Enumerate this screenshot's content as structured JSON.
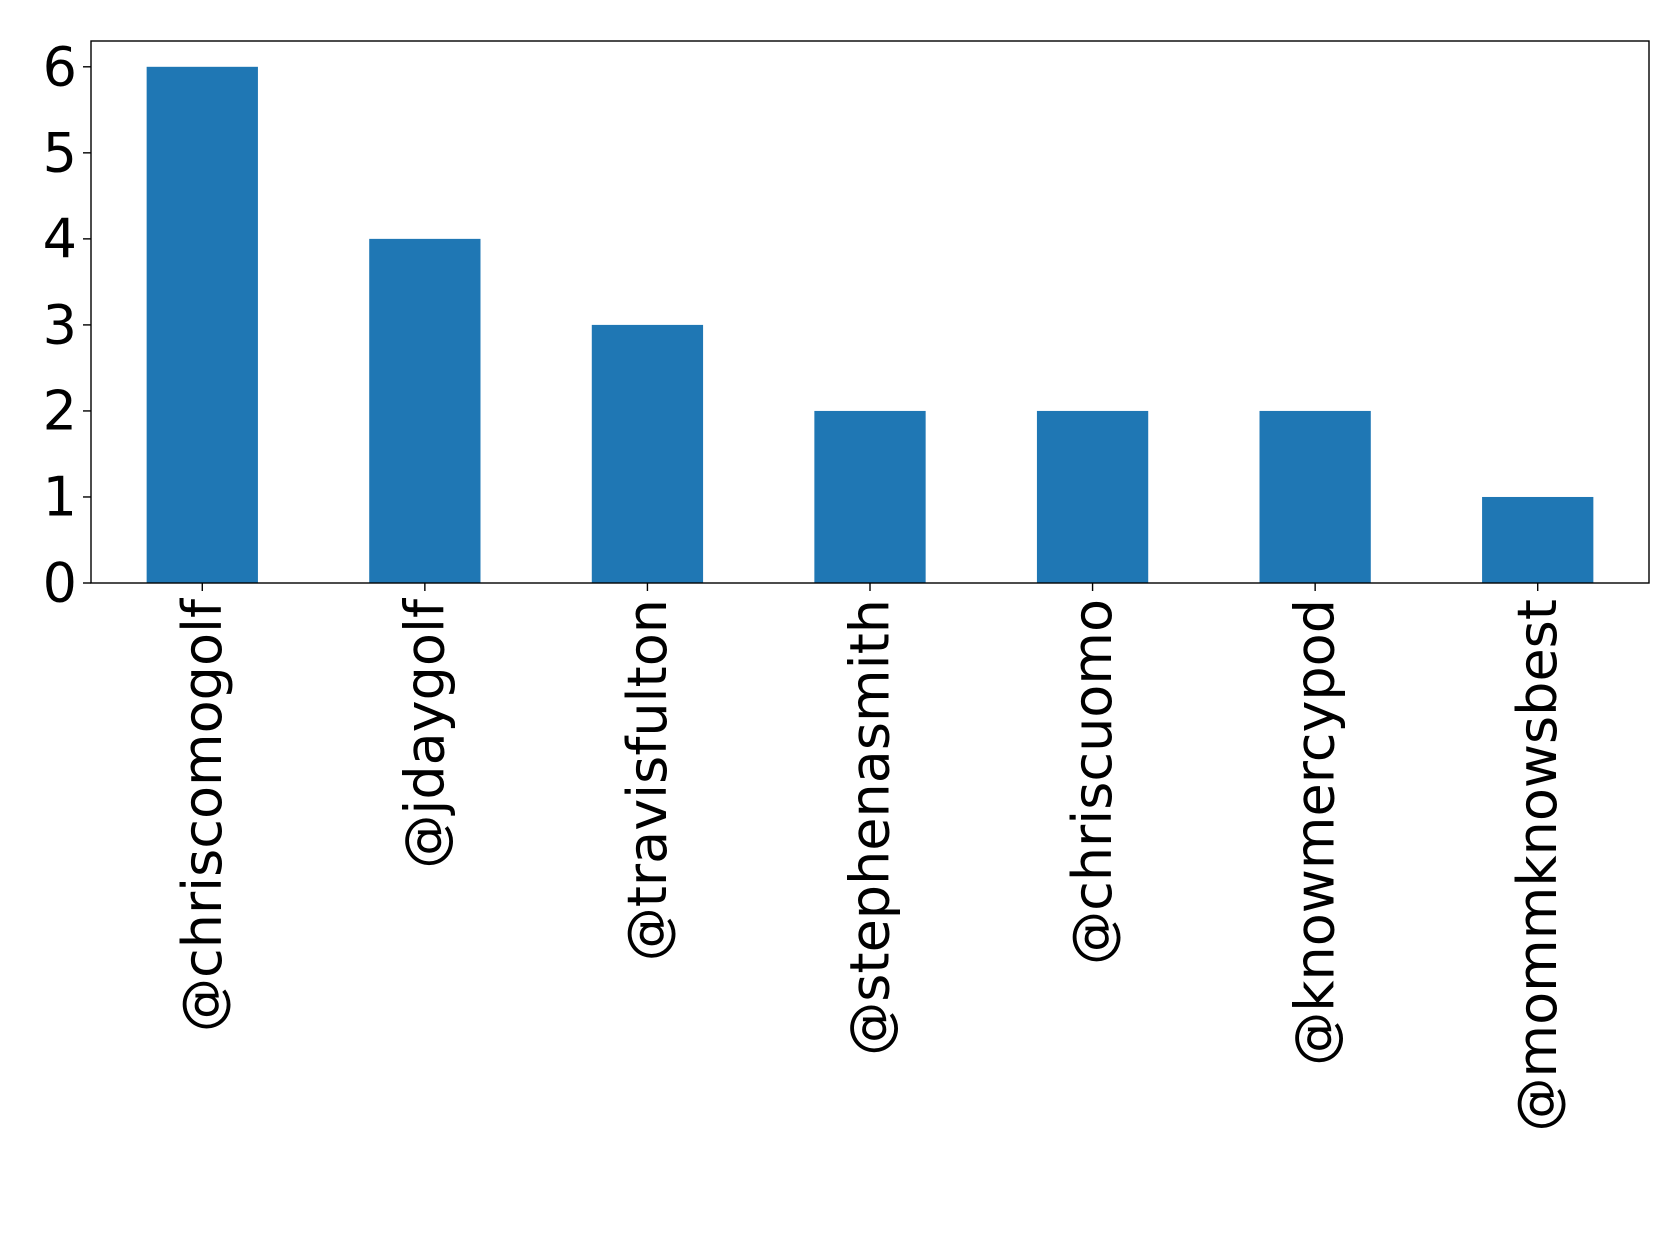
{
  "chart_data": {
    "type": "bar",
    "categories": [
      "@chriscomogolf",
      "@jdaygolf",
      "@travisfulton",
      "@stephenasmith",
      "@chriscuomo",
      "@knowmercypod",
      "@mommknowsbest"
    ],
    "values": [
      6,
      4,
      3,
      2,
      2,
      2,
      1
    ],
    "title": "",
    "xlabel": "",
    "ylabel": "",
    "ylim": [
      0,
      6.3
    ],
    "yticks": [
      "0",
      "1",
      "2",
      "3",
      "4",
      "5",
      "6"
    ],
    "grid": false,
    "legend": "none",
    "bar_color": "#1f77b4",
    "x_tick_rotation": "vertical"
  }
}
